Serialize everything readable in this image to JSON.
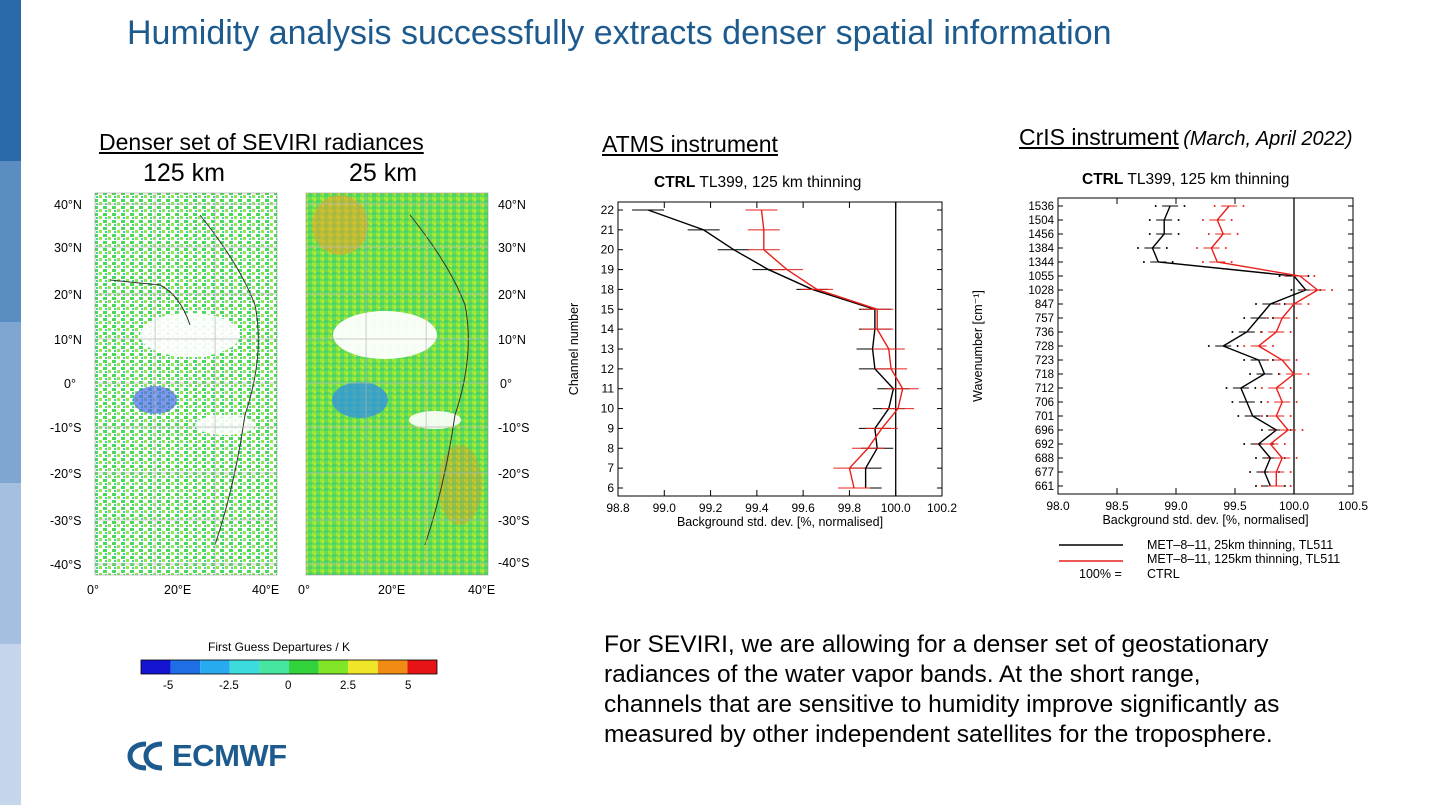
{
  "sidebar_colors": [
    "#2b6aa8",
    "#5a8ec2",
    "#7ea6d1",
    "#a4bfdf",
    "#c5d6ec"
  ],
  "title": "Humidity analysis successfully extracts denser spatial information",
  "seviri": {
    "heading": "Denser set of SEVIRI radiances",
    "res_left": "125 km",
    "res_right": "25 km",
    "lat_labels": [
      "40°N",
      "30°N",
      "20°N",
      "10°N",
      "0°",
      "-10°S",
      "-20°S",
      "-30°S",
      "-40°S"
    ],
    "lon_labels": [
      "0°",
      "20°E",
      "40°E"
    ],
    "colorbar_title": "First Guess Departures / K",
    "colorbar_colors": [
      "#1414d2",
      "#1e6ee6",
      "#28aaf0",
      "#3cdcdc",
      "#46e6a0",
      "#32d23c",
      "#82e628",
      "#f0e628",
      "#f08c14",
      "#e61414"
    ],
    "colorbar_ticks": [
      "-5",
      "-2.5",
      "0",
      "2.5",
      "5"
    ]
  },
  "atms": {
    "heading": "ATMS instrument",
    "subtitle_bold": "CTRL",
    "subtitle_rest": " TL399, 125 km thinning"
  },
  "cris": {
    "heading": "CrIS instrument",
    "heading_note": "(March, April 2022)",
    "subtitle_bold": "CTRL",
    "subtitle_rest": " TL399, 125 km thinning",
    "legend": [
      {
        "label": "MET–8–11, 25km thinning, TL511",
        "color": "#000000"
      },
      {
        "label": "MET–8–11, 125km thinning, TL511",
        "color": "#e8201c"
      },
      {
        "prefix": "100% =",
        "label": "CTRL"
      }
    ]
  },
  "chart_data": [
    {
      "type": "line",
      "title": "CTRL TL399, 125 km thinning",
      "xlabel": "Background std. dev. [%, normalised]",
      "ylabel": "Channel number",
      "xlim": [
        98.8,
        100.2
      ],
      "x_ticks": [
        "98.8",
        "99.0",
        "99.2",
        "99.4",
        "99.6",
        "99.8",
        "100.0",
        "100.2"
      ],
      "categories": [
        "6",
        "7",
        "8",
        "9",
        "10",
        "11",
        "12",
        "13",
        "14",
        "15",
        "18",
        "19",
        "20",
        "21",
        "22"
      ],
      "reference_x": 100.0,
      "series": [
        {
          "name": "MET–8–11, 25km thinning, TL511",
          "color": "#000000",
          "values": [
            99.87,
            99.87,
            99.92,
            99.91,
            99.97,
            99.99,
            99.91,
            99.9,
            99.91,
            99.91,
            99.64,
            99.45,
            99.3,
            99.17,
            98.93
          ]
        },
        {
          "name": "MET–8–11, 125km thinning, TL511",
          "color": "#e8201c",
          "values": [
            99.82,
            99.8,
            99.88,
            99.94,
            100.01,
            100.03,
            99.98,
            99.97,
            99.92,
            99.92,
            99.66,
            99.53,
            99.43,
            99.43,
            99.42
          ]
        }
      ]
    },
    {
      "type": "line",
      "title": "CTRL TL399, 125 km thinning",
      "xlabel": "Background std. dev. [%, normalised]",
      "ylabel": "Wavenumber [cm⁻¹]",
      "xlim": [
        98.0,
        100.5
      ],
      "x_ticks": [
        "98.0",
        "98.5",
        "99.0",
        "99.5",
        "100.0",
        "100.5"
      ],
      "categories": [
        "661",
        "677",
        "688",
        "692",
        "696",
        "701",
        "706",
        "712",
        "718",
        "723",
        "728",
        "736",
        "757",
        "847",
        "1028",
        "1055",
        "1344",
        "1384",
        "1456",
        "1504",
        "1536"
      ],
      "reference_x": 100.0,
      "series": [
        {
          "name": "MET–8–11, 25km thinning, TL511",
          "color": "#000000",
          "values": [
            99.8,
            99.75,
            99.8,
            99.7,
            99.85,
            99.65,
            99.6,
            99.55,
            99.75,
            99.7,
            99.4,
            99.6,
            99.7,
            99.8,
            100.1,
            100.0,
            98.85,
            98.8,
            98.9,
            98.9,
            98.95
          ]
        },
        {
          "name": "MET–8–11, 125km thinning, TL511",
          "color": "#e8201c",
          "values": [
            99.85,
            99.85,
            99.9,
            99.8,
            99.95,
            99.85,
            99.9,
            99.85,
            100.0,
            99.9,
            99.7,
            99.85,
            99.9,
            100.0,
            100.2,
            100.05,
            99.35,
            99.3,
            99.4,
            99.35,
            99.45
          ]
        }
      ]
    }
  ],
  "body_lines": [
    "For SEVIRI, we are allowing for a denser set of geostationary",
    "radiances of the water vapor bands. At the short range,",
    "channels that are sensitive to humidity improve significantly as",
    "measured by other independent satellites for the troposphere."
  ],
  "logo_text": "ECMWF"
}
